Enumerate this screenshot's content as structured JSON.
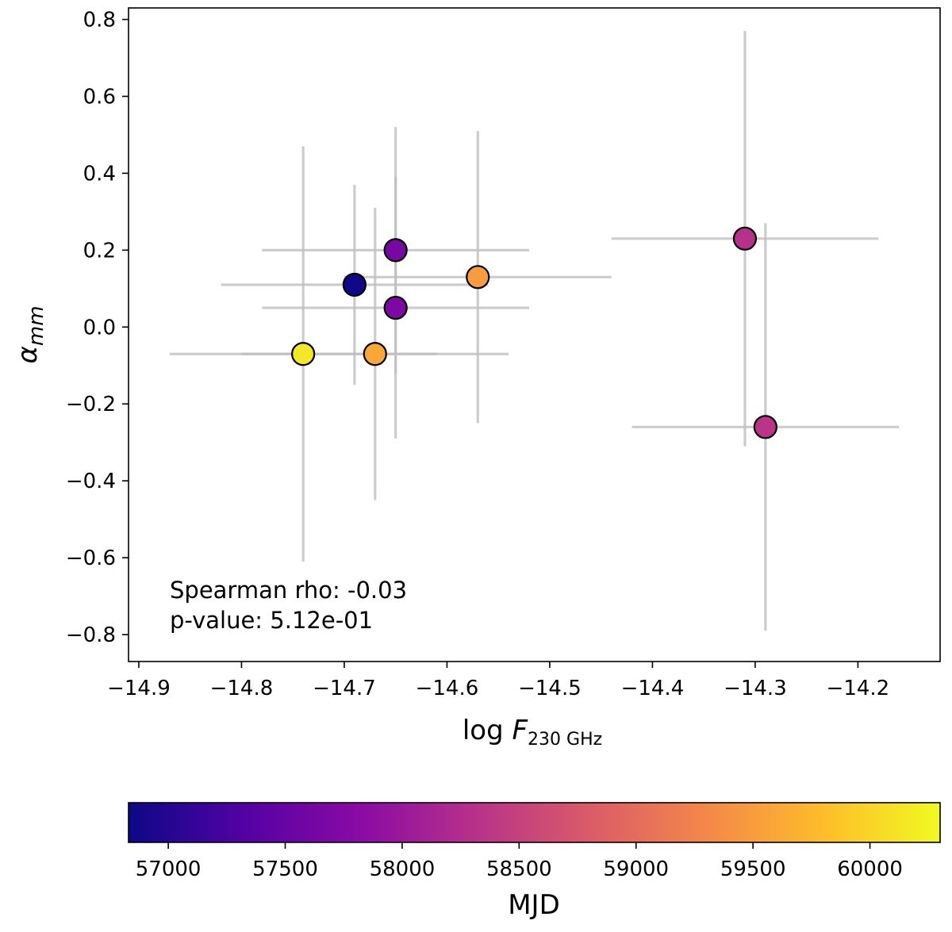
{
  "chart_data": {
    "type": "scatter",
    "xlabel": {
      "main": "log ",
      "var": "F",
      "sub": "230 GHz"
    },
    "ylabel": {
      "main": "α",
      "sub": "mm"
    },
    "xlim": [
      -14.91,
      -14.12
    ],
    "ylim": [
      -0.87,
      0.83
    ],
    "xticks": [
      -14.9,
      -14.8,
      -14.7,
      -14.6,
      -14.5,
      -14.4,
      -14.3,
      -14.2
    ],
    "xtick_labels": [
      "−14.9",
      "−14.8",
      "−14.7",
      "−14.6",
      "−14.5",
      "−14.4",
      "−14.3",
      "−14.2"
    ],
    "yticks": [
      0.8,
      0.6,
      0.4,
      0.2,
      0.0,
      -0.2,
      -0.4,
      -0.6,
      -0.8
    ],
    "ytick_labels": [
      "0.8",
      "0.6",
      "0.4",
      "0.2",
      "0.0",
      "−0.2",
      "−0.4",
      "−0.6",
      "−0.8"
    ],
    "grid": false,
    "points": [
      {
        "x": -14.69,
        "y": 0.11,
        "xerr": 0.13,
        "yerr": 0.26,
        "mjd": 56850
      },
      {
        "x": -14.65,
        "y": 0.2,
        "xerr": 0.13,
        "yerr": 0.32,
        "mjd": 57650
      },
      {
        "x": -14.65,
        "y": 0.05,
        "xerr": 0.13,
        "yerr": 0.34,
        "mjd": 57700
      },
      {
        "x": -14.31,
        "y": 0.23,
        "xerr": 0.13,
        "yerr": 0.54,
        "mjd": 58300
      },
      {
        "x": -14.29,
        "y": -0.26,
        "xerr": 0.13,
        "yerr": 0.53,
        "mjd": 58350
      },
      {
        "x": -14.57,
        "y": 0.13,
        "xerr": 0.13,
        "yerr": 0.38,
        "mjd": 59500
      },
      {
        "x": -14.67,
        "y": -0.07,
        "xerr": 0.13,
        "yerr": 0.38,
        "mjd": 59600
      },
      {
        "x": -14.74,
        "y": -0.07,
        "xerr": 0.13,
        "yerr": 0.54,
        "mjd": 60150
      }
    ],
    "annotations": [
      "Spearman rho: -0.03",
      "p-value: 5.12e-01"
    ],
    "colorbar": {
      "label": "MJD",
      "range": [
        56830,
        60300
      ],
      "ticks": [
        57000,
        57500,
        58000,
        58500,
        59000,
        59500,
        60000
      ],
      "tick_labels": [
        "57000",
        "57500",
        "58000",
        "58500",
        "59000",
        "59500",
        "60000"
      ],
      "colormap": "plasma",
      "colormap_stops": [
        "#0d0887",
        "#5302a3",
        "#8b0aa5",
        "#b83289",
        "#db5c68",
        "#f48849",
        "#febd2a",
        "#f0f921"
      ]
    },
    "errorbar_color": "#bfbfbf"
  }
}
